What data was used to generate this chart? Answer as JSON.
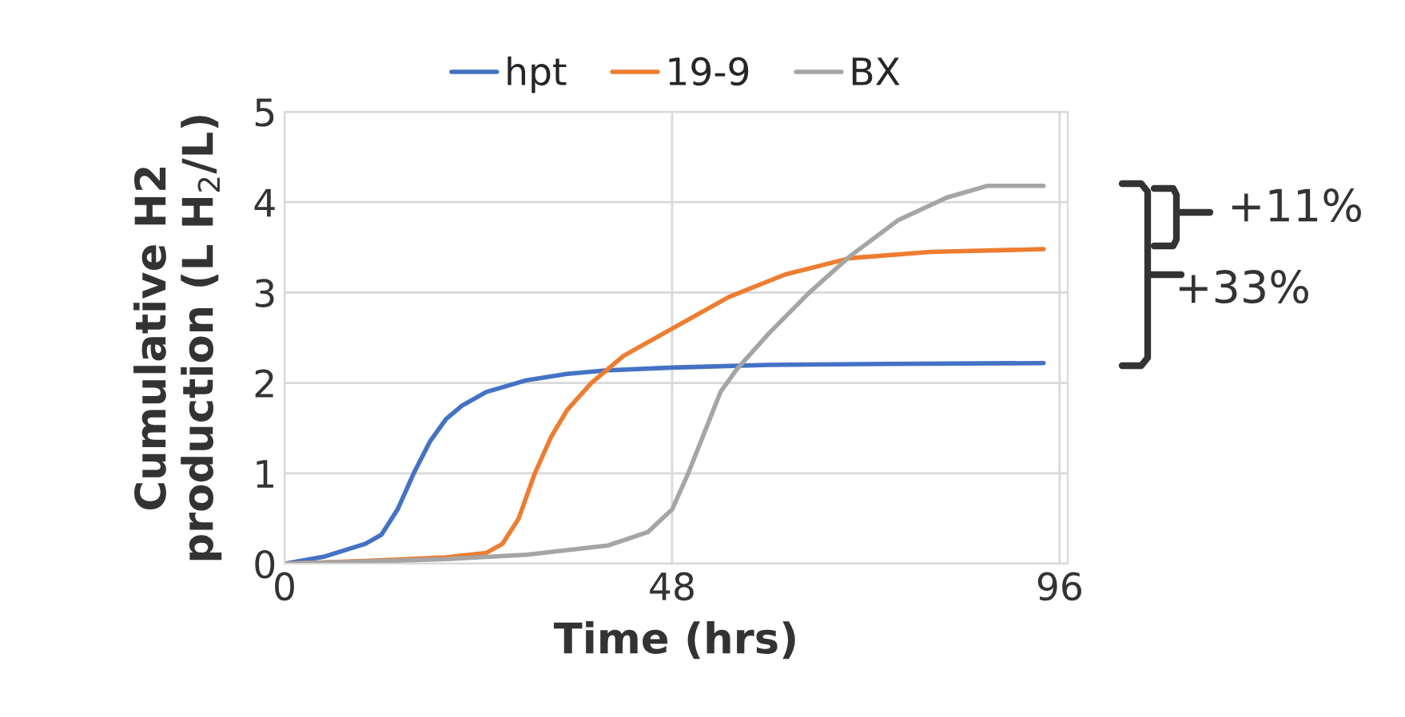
{
  "chart_data": {
    "type": "line",
    "xlabel": "Time (hrs)",
    "ylabel": "Cumulative H2\nproduction (L H$_{2}$/L)",
    "xlim": [
      0,
      97
    ],
    "xticks": [
      0,
      48,
      96
    ],
    "ylim": [
      0,
      5
    ],
    "yticks": [
      0,
      1,
      2,
      3,
      4,
      5
    ],
    "grid": true,
    "legend": "top",
    "series": [
      {
        "name": "hpt",
        "color": "#4472c4",
        "x": [
          0,
          5,
          10,
          12,
          14,
          16,
          18,
          20,
          22,
          25,
          30,
          35,
          40,
          48,
          60,
          75,
          94
        ],
        "values": [
          0,
          0.08,
          0.22,
          0.32,
          0.6,
          1.0,
          1.35,
          1.6,
          1.75,
          1.9,
          2.03,
          2.1,
          2.14,
          2.17,
          2.2,
          2.21,
          2.22
        ]
      },
      {
        "name": "19-9",
        "color": "#ed7d31",
        "x": [
          0,
          10,
          20,
          25,
          27,
          29,
          31,
          33,
          35,
          38,
          42,
          48,
          55,
          62,
          70,
          80,
          94
        ],
        "values": [
          0,
          0.03,
          0.07,
          0.12,
          0.22,
          0.5,
          1.0,
          1.4,
          1.7,
          2.0,
          2.3,
          2.6,
          2.95,
          3.2,
          3.38,
          3.45,
          3.48
        ]
      },
      {
        "name": "BX",
        "color": "#a5a5a5",
        "x": [
          0,
          20,
          30,
          40,
          45,
          48,
          50,
          52,
          54,
          56,
          60,
          65,
          70,
          76,
          82,
          87,
          94
        ],
        "values": [
          0,
          0.05,
          0.1,
          0.2,
          0.35,
          0.6,
          1.0,
          1.45,
          1.9,
          2.15,
          2.55,
          3.0,
          3.4,
          3.8,
          4.05,
          4.18,
          4.18
        ]
      }
    ],
    "annotations": [
      "+11%",
      "+33%"
    ]
  }
}
